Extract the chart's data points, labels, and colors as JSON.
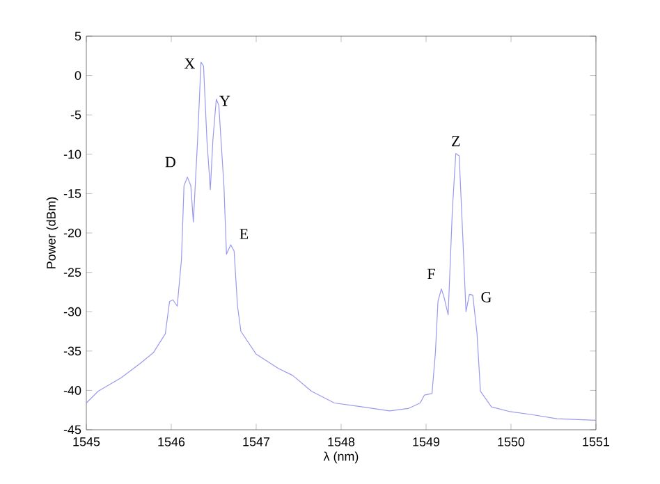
{
  "chart_data": {
    "type": "line",
    "xlabel": "λ (nm)",
    "ylabel": "Power (dBm)",
    "xlim": [
      1545,
      1551
    ],
    "xticks": [
      1545,
      1546,
      1547,
      1548,
      1549,
      1550,
      1551
    ],
    "ylim": [
      -45,
      5
    ],
    "yticks": [
      -45,
      -40,
      -35,
      -30,
      -25,
      -20,
      -15,
      -10,
      -5,
      0,
      5
    ],
    "grid": false,
    "marker": "none",
    "line_style": "solid",
    "series": [
      {
        "color": "#9999ee",
        "x": [
          1545,
          1545.14,
          1545.41,
          1545.63,
          1545.79,
          1545.93,
          1545.98,
          1546.02,
          1546.07,
          1546.12,
          1546.15,
          1546.19,
          1546.23,
          1546.26,
          1546.31,
          1546.35,
          1546.38,
          1546.42,
          1546.46,
          1546.49,
          1546.53,
          1546.56,
          1546.62,
          1546.65,
          1546.7,
          1546.74,
          1546.78,
          1546.82,
          1547,
          1547.26,
          1547.43,
          1547.65,
          1547.92,
          1548.25,
          1548.57,
          1548.79,
          1548.93,
          1548.98,
          1549.07,
          1549.11,
          1549.14,
          1549.18,
          1549.21,
          1549.26,
          1549.31,
          1549.35,
          1549.39,
          1549.43,
          1549.47,
          1549.51,
          1549.55,
          1549.6,
          1549.64,
          1549.77,
          1549.99,
          1550.26,
          1550.54,
          1551
        ],
        "values": [
          -41.6,
          -40.1,
          -38.4,
          -36.6,
          -35.2,
          -32.8,
          -28.7,
          -28.5,
          -29.3,
          -23.4,
          -14.0,
          -12.9,
          -14.0,
          -18.6,
          -8.2,
          1.7,
          1.2,
          -8.2,
          -14.5,
          -8.2,
          -3.0,
          -3.8,
          -14.0,
          -22.7,
          -21.5,
          -22.3,
          -29.3,
          -32.5,
          -35.4,
          -37.2,
          -38.1,
          -40.1,
          -41.6,
          -42.1,
          -42.6,
          -42.3,
          -41.6,
          -40.6,
          -40.4,
          -35.2,
          -28.7,
          -27.1,
          -28.1,
          -30.4,
          -17.0,
          -9.9,
          -10.2,
          -19.9,
          -30.0,
          -27.8,
          -27.9,
          -32.8,
          -40.1,
          -42.1,
          -42.7,
          -43.1,
          -43.6,
          -43.8
        ]
      }
    ],
    "annotations": [
      {
        "text": "D",
        "x": 1546.19,
        "y": -12.9
      },
      {
        "text": "X",
        "x": 1546.35,
        "y": 1.7
      },
      {
        "text": "Y",
        "x": 1546.53,
        "y": -3.0
      },
      {
        "text": "E",
        "x": 1546.7,
        "y": -21.5
      },
      {
        "text": "F",
        "x": 1549.18,
        "y": -27.1
      },
      {
        "text": "Z",
        "x": 1549.35,
        "y": -9.9
      },
      {
        "text": "G",
        "x": 1549.51,
        "y": -27.8
      }
    ]
  }
}
